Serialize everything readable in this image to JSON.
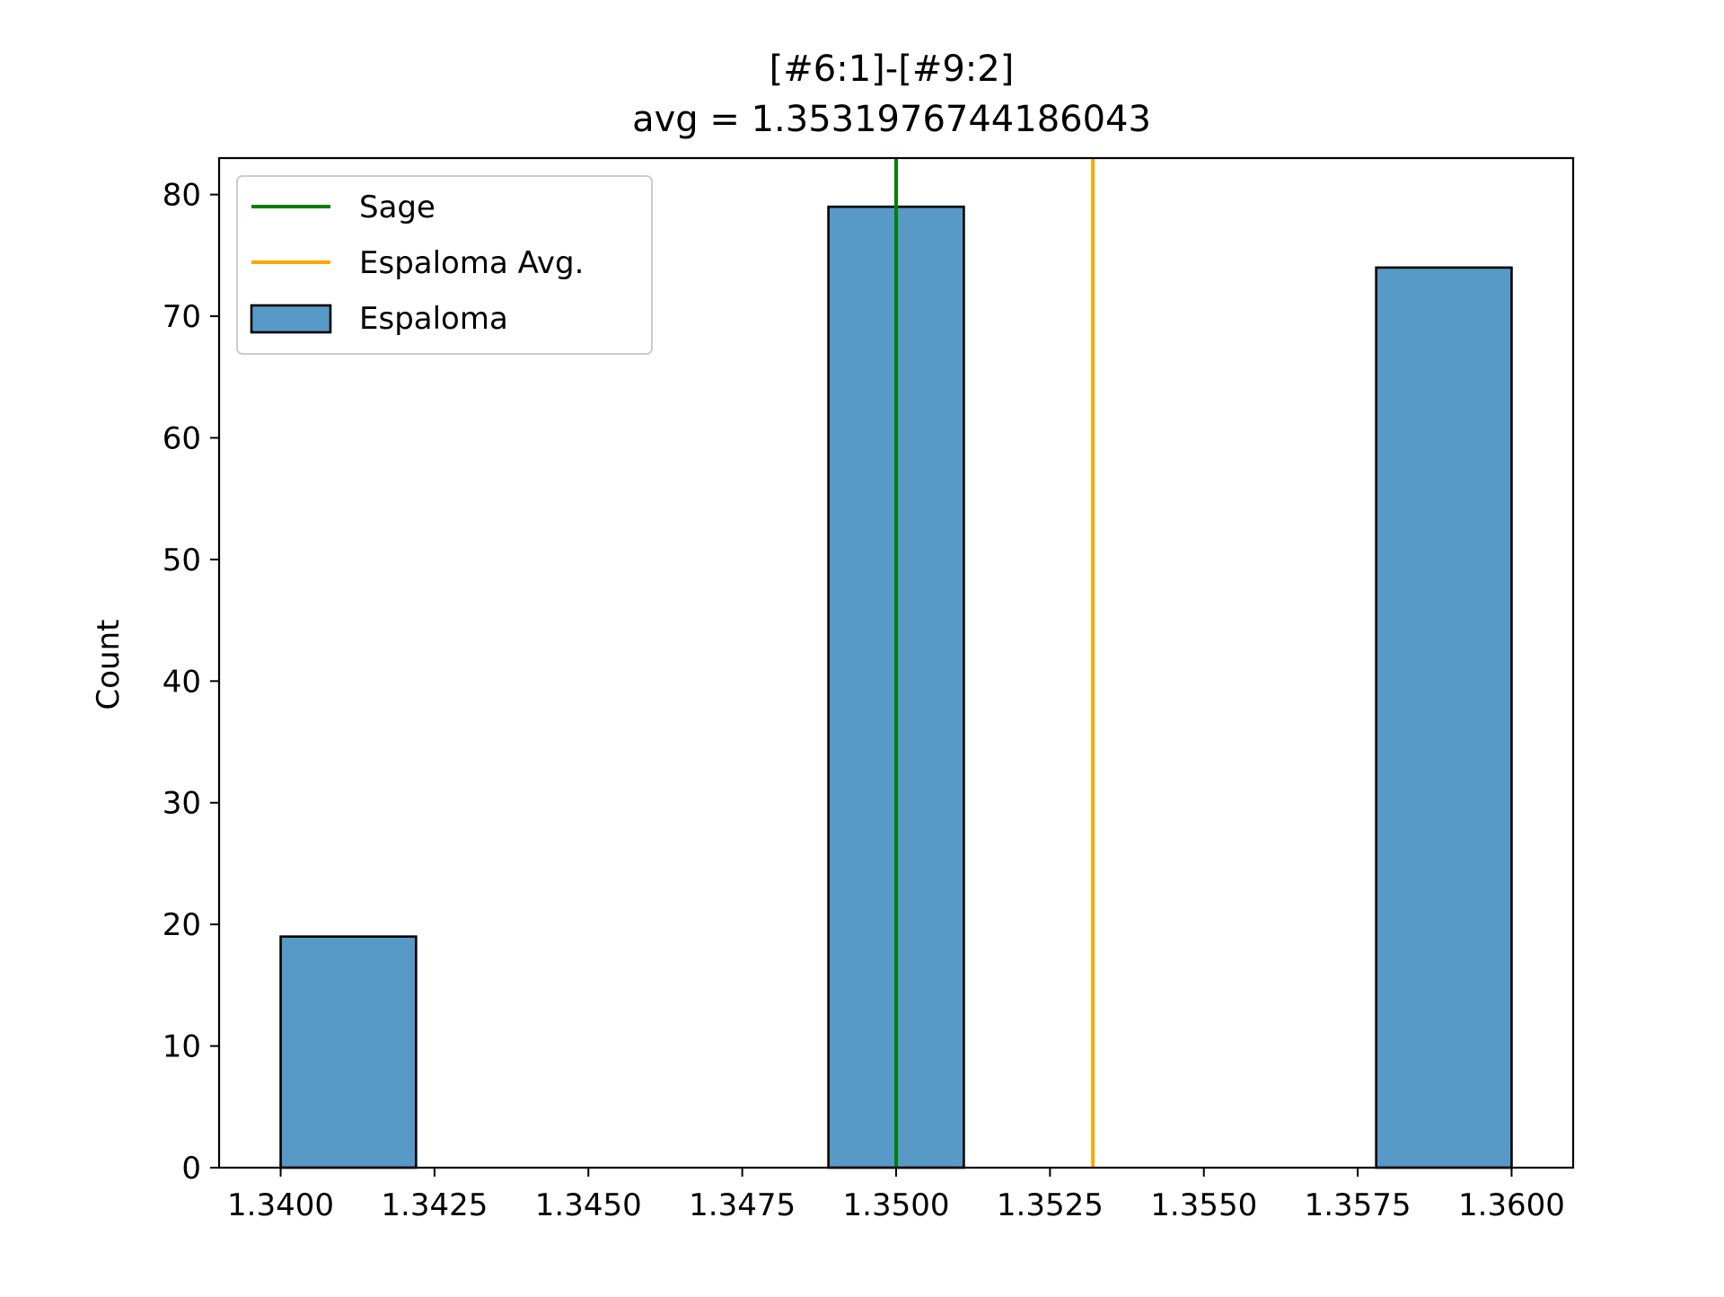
{
  "chart_data": {
    "type": "bar",
    "title": "[#6:1]-[#9:2]",
    "subtitle": "avg = 1.3531976744186043",
    "xlabel": "",
    "ylabel": "Count",
    "xlim": [
      1.339,
      1.361
    ],
    "ylim": [
      0,
      83
    ],
    "xticks": [
      1.34,
      1.3425,
      1.345,
      1.3475,
      1.35,
      1.3525,
      1.355,
      1.3575,
      1.36
    ],
    "xtick_labels": [
      "1.3400",
      "1.3425",
      "1.3450",
      "1.3475",
      "1.3500",
      "1.3525",
      "1.3550",
      "1.3575",
      "1.3600"
    ],
    "yticks": [
      0,
      10,
      20,
      30,
      40,
      50,
      60,
      70,
      80
    ],
    "ytick_labels": [
      "0",
      "10",
      "20",
      "30",
      "40",
      "50",
      "60",
      "70",
      "80"
    ],
    "grid": false,
    "legend_position": "top-left",
    "bins": [
      {
        "x0": 1.34,
        "x1": 1.3422,
        "count": 19
      },
      {
        "x0": 1.3422,
        "x1": 1.3444,
        "count": 0
      },
      {
        "x0": 1.3444,
        "x1": 1.3467,
        "count": 0
      },
      {
        "x0": 1.3467,
        "x1": 1.3489,
        "count": 0
      },
      {
        "x0": 1.3489,
        "x1": 1.3511,
        "count": 79
      },
      {
        "x0": 1.3511,
        "x1": 1.3533,
        "count": 0
      },
      {
        "x0": 1.3533,
        "x1": 1.3556,
        "count": 0
      },
      {
        "x0": 1.3556,
        "x1": 1.3578,
        "count": 0
      },
      {
        "x0": 1.3578,
        "x1": 1.36,
        "count": 74
      }
    ],
    "series": [
      {
        "name": "Sage",
        "kind": "vline",
        "x": 1.35,
        "color": "#008000"
      },
      {
        "name": "Espaloma Avg.",
        "kind": "vline",
        "x": 1.3531976744186043,
        "color": "#ffa500"
      },
      {
        "name": "Espaloma",
        "kind": "histogram",
        "color": "#5799c7",
        "edgecolor": "#000000"
      }
    ]
  }
}
